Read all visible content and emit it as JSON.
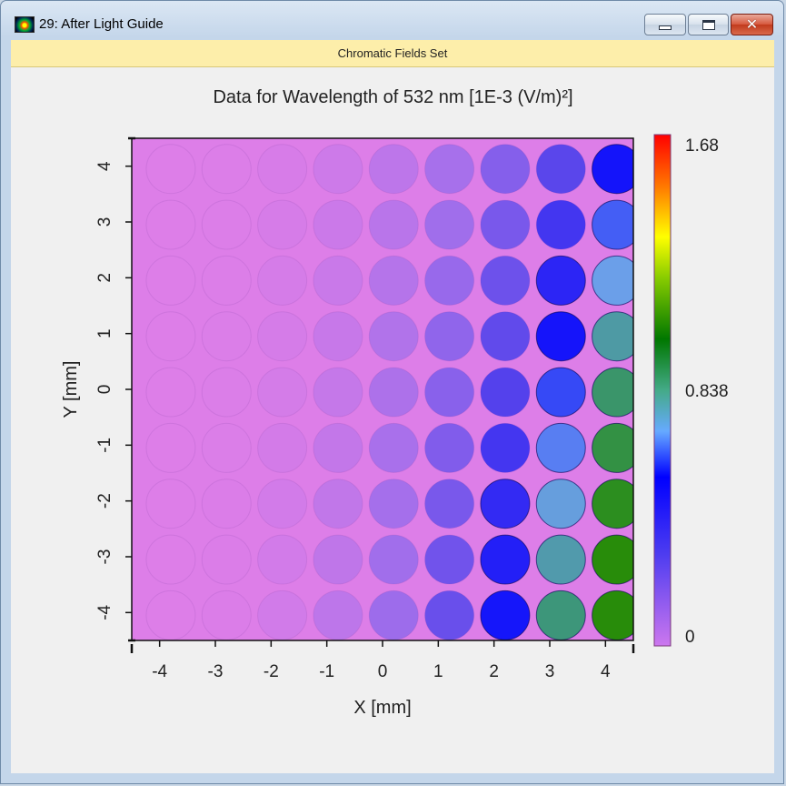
{
  "window": {
    "title": "29: After Light Guide",
    "buttons": {
      "minimize": "minimize",
      "maximize": "maximize",
      "close": "close"
    }
  },
  "header": {
    "label": "Chromatic Fields Set"
  },
  "chart_data": {
    "type": "heatmap",
    "title": "Data for Wavelength of 532 nm  [1E-3 (V/m)²]",
    "xlabel": "X [mm]",
    "ylabel": "Y [mm]",
    "xlim": [
      -4.5,
      4.5
    ],
    "ylim": [
      -4.5,
      4.5
    ],
    "x_ticks": [
      -4,
      -3,
      -2,
      -1,
      0,
      1,
      2,
      3,
      4
    ],
    "y_ticks": [
      -4,
      -3,
      -2,
      -1,
      0,
      1,
      2,
      3,
      4
    ],
    "colorbar": {
      "min": 0,
      "mid": 0.838,
      "max": 1.68,
      "labels": [
        "1.68",
        "0.838",
        "0"
      ]
    },
    "colormap": [
      "#cc77dd",
      "#0000ff",
      "#88aaff",
      "#008800",
      "#ffff00",
      "#ff6600",
      "#ff0000"
    ],
    "grid": false,
    "spot_pitch_mm": 1,
    "spot_columns_x": [
      -4,
      -3,
      -2,
      -1,
      0,
      1,
      2,
      3,
      4
    ],
    "spot_rows_y": [
      4,
      3,
      2,
      1,
      0,
      -1,
      -2,
      -3,
      -4
    ]
  }
}
